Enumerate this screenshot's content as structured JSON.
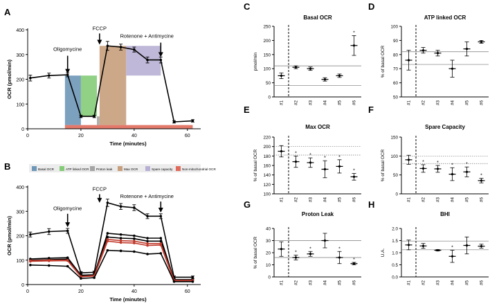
{
  "figure": {
    "main_panels": [
      {
        "letter": "A",
        "ylabel": "OCR (pmol/min)",
        "xlabel": "Time (minutes)",
        "yticks": [
          "0",
          "100",
          "200",
          "300",
          "400"
        ],
        "xticks": [
          "0",
          "20",
          "40",
          "60"
        ],
        "ylim": [
          0,
          400
        ],
        "xlim": [
          0,
          65
        ],
        "annotations": [
          {
            "text": "Oligomycine",
            "x": 15,
            "tip": 222,
            "base": 295,
            "label_y": 315
          },
          {
            "text": "FCCP",
            "x": 27,
            "tip": 340,
            "base": 385,
            "label_y": 398
          },
          {
            "text": "Rotenone + Antimycine",
            "x": 50,
            "tip": 290,
            "base": 348,
            "label_y": 368
          }
        ],
        "legend": [
          {
            "text": "Basal OCR",
            "color": "#6e97b8"
          },
          {
            "text": "ATP linked OCR",
            "color": "#84cc78"
          },
          {
            "text": "Proton leak",
            "color": "#a5a5a5"
          },
          {
            "text": "Max OCR",
            "color": "#c79f7c"
          },
          {
            "text": "Spare capacity",
            "color": "#b8b0d4"
          },
          {
            "text": "Non-mitochondrial OCR",
            "color": "#e06a5a"
          }
        ]
      },
      {
        "letter": "B",
        "ylabel": "OCR (pmol/min)",
        "xlabel": "Time (minutes)",
        "yticks": [
          "0",
          "100",
          "200",
          "300",
          "400"
        ],
        "xticks": [
          "0",
          "20",
          "40",
          "60"
        ],
        "ylim": [
          0,
          400
        ],
        "xlim": [
          0,
          65
        ],
        "annotations": [
          {
            "text": "Oligomycine",
            "x": 15,
            "tip": 235,
            "base": 290,
            "label_y": 305
          },
          {
            "text": "FCCP",
            "x": 27,
            "tip": 335,
            "base": 370,
            "label_y": 385
          },
          {
            "text": "Rotenone + Antimycine",
            "x": 50,
            "tip": 295,
            "base": 340,
            "label_y": 355
          }
        ]
      }
    ],
    "small_panels": [
      {
        "letter": "C",
        "title": "Basal OCR",
        "ylabel": "pmol/min",
        "yticks": [
          "0",
          "50",
          "100",
          "150",
          "200",
          "250"
        ],
        "ylim": [
          0,
          250
        ],
        "ref_lines": [
          110,
          40
        ],
        "ref_style": "solid"
      },
      {
        "letter": "D",
        "title": "ATP linked OCR",
        "ylabel": "% of basal OCR",
        "yticks": [
          "50",
          "60",
          "70",
          "80",
          "90",
          "100"
        ],
        "ylim": [
          50,
          100
        ],
        "ref_lines": [
          82,
          73
        ],
        "ref_style": "solid"
      },
      {
        "letter": "E",
        "title": "Max OCR",
        "ylabel": "% of basal OCR",
        "yticks": [
          "100",
          "120",
          "140",
          "160",
          "180",
          "200",
          "220"
        ],
        "ylim": [
          100,
          220
        ],
        "ref_lines": [
          200,
          182
        ],
        "ref_style": "dotted"
      },
      {
        "letter": "F",
        "title": "Spare Capacity",
        "ylabel": "% of basal OCR",
        "yticks": [
          "0",
          "50",
          "100",
          "150"
        ],
        "ylim": [
          0,
          150
        ],
        "ref_lines": [
          100,
          80
        ],
        "ref_style": "dotted"
      },
      {
        "letter": "G",
        "title": "Proton Leak",
        "ylabel": "% of basal OCR",
        "yticks": [
          "0",
          "10",
          "20",
          "30",
          "40"
        ],
        "ylim": [
          0,
          40
        ],
        "ref_lines": [
          30,
          16
        ],
        "ref_style": "solid"
      },
      {
        "letter": "H",
        "title": "BHI",
        "ylabel": "U.A.",
        "yticks": [
          "0.0",
          "0.5",
          "1.0",
          "1.5",
          "2.0"
        ],
        "ylim": [
          0,
          2
        ],
        "ref_lines": [
          1.48,
          1.12
        ],
        "ref_style": "solid"
      }
    ],
    "categories": [
      "#1",
      "#2",
      "#3",
      "#4",
      "#5",
      "#6"
    ]
  },
  "chart_data": [
    {
      "type": "line",
      "title": "A",
      "xlabel": "Time (minutes)",
      "ylabel": "OCR (pmol/min)",
      "x": [
        1,
        8,
        15,
        20,
        25,
        30,
        35,
        40,
        45,
        50,
        55,
        62
      ],
      "series": [
        {
          "name": "OCR",
          "values": [
            205,
            215,
            218,
            50,
            50,
            335,
            330,
            320,
            278,
            278,
            28,
            32
          ],
          "err": [
            12,
            10,
            8,
            5,
            5,
            18,
            12,
            10,
            12,
            12,
            5,
            5
          ]
        }
      ],
      "regions": [
        {
          "name": "Basal OCR",
          "x": [
            14,
            20
          ],
          "y": [
            15,
            215
          ],
          "color": "#6e97b8"
        },
        {
          "name": "ATP linked OCR",
          "x": [
            20,
            26
          ],
          "y": [
            50,
            215
          ],
          "color": "#84cc78"
        },
        {
          "name": "Proton leak",
          "x": [
            26,
            27
          ],
          "y": [
            15,
            50
          ],
          "color": "#a5a5a5"
        },
        {
          "name": "Max OCR",
          "x": [
            27,
            37
          ],
          "y": [
            15,
            335
          ],
          "color": "#c79f7c"
        },
        {
          "name": "Spare capacity",
          "x": [
            37,
            50
          ],
          "y": [
            215,
            335
          ],
          "color": "#b8b0d4"
        },
        {
          "name": "Non-mitochondrial OCR",
          "x": [
            14,
            62
          ],
          "y": [
            0,
            15
          ],
          "color": "#e06a5a"
        }
      ],
      "ylim": [
        0,
        400
      ],
      "xlim": [
        0,
        65
      ]
    },
    {
      "type": "line",
      "title": "B",
      "xlabel": "Time (minutes)",
      "ylabel": "OCR (pmol/min)",
      "x": [
        1,
        8,
        15,
        20,
        25,
        30,
        35,
        40,
        45,
        50,
        55,
        62
      ],
      "series": [
        {
          "name": "#1",
          "color": "#000000",
          "values": [
            205,
            217,
            220,
            48,
            50,
            335,
            320,
            315,
            280,
            280,
            30,
            30
          ],
          "err": [
            10,
            12,
            10,
            5,
            5,
            15,
            12,
            12,
            10,
            10,
            5,
            5
          ]
        },
        {
          "name": "#2",
          "color": "#000000",
          "values": [
            105,
            108,
            110,
            38,
            40,
            210,
            205,
            200,
            190,
            190,
            20,
            20
          ]
        },
        {
          "name": "#3",
          "color": "#000000",
          "values": [
            100,
            102,
            104,
            35,
            38,
            195,
            190,
            188,
            178,
            178,
            18,
            18
          ]
        },
        {
          "name": "#4",
          "color": "#c0392b",
          "values": [
            98,
            100,
            100,
            33,
            36,
            185,
            180,
            178,
            168,
            168,
            17,
            17
          ]
        },
        {
          "name": "#5",
          "color": "#c0392b",
          "values": [
            95,
            97,
            98,
            32,
            35,
            178,
            172,
            170,
            160,
            162,
            16,
            16
          ]
        },
        {
          "name": "#6",
          "color": "#000000",
          "values": [
            80,
            78,
            75,
            25,
            28,
            140,
            138,
            135,
            125,
            128,
            12,
            12
          ]
        }
      ],
      "ylim": [
        0,
        400
      ],
      "xlim": [
        0,
        65
      ]
    },
    {
      "type": "scatter",
      "title": "Basal OCR",
      "ylabel": "pmol/min",
      "categories": [
        "#1",
        "#2",
        "#3",
        "#4",
        "#5",
        "#6"
      ],
      "values": [
        75,
        105,
        100,
        62,
        75,
        182
      ],
      "err": [
        10,
        5,
        6,
        6,
        6,
        35
      ],
      "significant": [
        false,
        false,
        false,
        false,
        false,
        true
      ],
      "ylim": [
        0,
        250
      ]
    },
    {
      "type": "scatter",
      "title": "ATP linked OCR",
      "ylabel": "% of basal OCR",
      "categories": [
        "#1",
        "#2",
        "#3",
        "#4",
        "#5",
        "#6"
      ],
      "values": [
        76,
        83,
        81,
        70,
        84,
        89
      ],
      "err": [
        7,
        2,
        2,
        6,
        5,
        1
      ],
      "significant": [
        false,
        false,
        false,
        false,
        false,
        false
      ],
      "ylim": [
        50,
        100
      ]
    },
    {
      "type": "scatter",
      "title": "Max OCR",
      "ylabel": "% of basal OCR",
      "categories": [
        "#1",
        "#2",
        "#3",
        "#4",
        "#5",
        "#6"
      ],
      "values": [
        190,
        168,
        166,
        152,
        158,
        136
      ],
      "err": [
        12,
        12,
        10,
        18,
        14,
        7
      ],
      "significant": [
        false,
        true,
        true,
        true,
        true,
        true
      ],
      "ylim": [
        100,
        220
      ]
    },
    {
      "type": "scatter",
      "title": "Spare Capacity",
      "ylabel": "% of basal OCR",
      "categories": [
        "#1",
        "#2",
        "#3",
        "#4",
        "#5",
        "#6"
      ],
      "values": [
        90,
        67,
        66,
        52,
        58,
        35
      ],
      "err": [
        12,
        10,
        9,
        17,
        13,
        6
      ],
      "significant": [
        false,
        true,
        true,
        true,
        true,
        true
      ],
      "ylim": [
        0,
        150
      ]
    },
    {
      "type": "scatter",
      "title": "Proton Leak",
      "ylabel": "% of basal OCR",
      "categories": [
        "#1",
        "#2",
        "#3",
        "#4",
        "#5",
        "#6"
      ],
      "values": [
        23,
        16,
        19,
        30,
        16,
        11
      ],
      "err": [
        6,
        2,
        2,
        6,
        5,
        1
      ],
      "significant": [
        false,
        true,
        true,
        false,
        true,
        true
      ],
      "ylim": [
        0,
        40
      ]
    },
    {
      "type": "scatter",
      "title": "BHI",
      "ylabel": "U.A.",
      "categories": [
        "#1",
        "#2",
        "#3",
        "#4",
        "#5",
        "#6"
      ],
      "values": [
        1.32,
        1.28,
        1.1,
        0.85,
        1.3,
        1.27
      ],
      "err": [
        0.2,
        0.1,
        0.03,
        0.25,
        0.35,
        0.08
      ],
      "significant": [
        false,
        false,
        false,
        true,
        false,
        false
      ],
      "ylim": [
        0,
        2
      ]
    }
  ]
}
